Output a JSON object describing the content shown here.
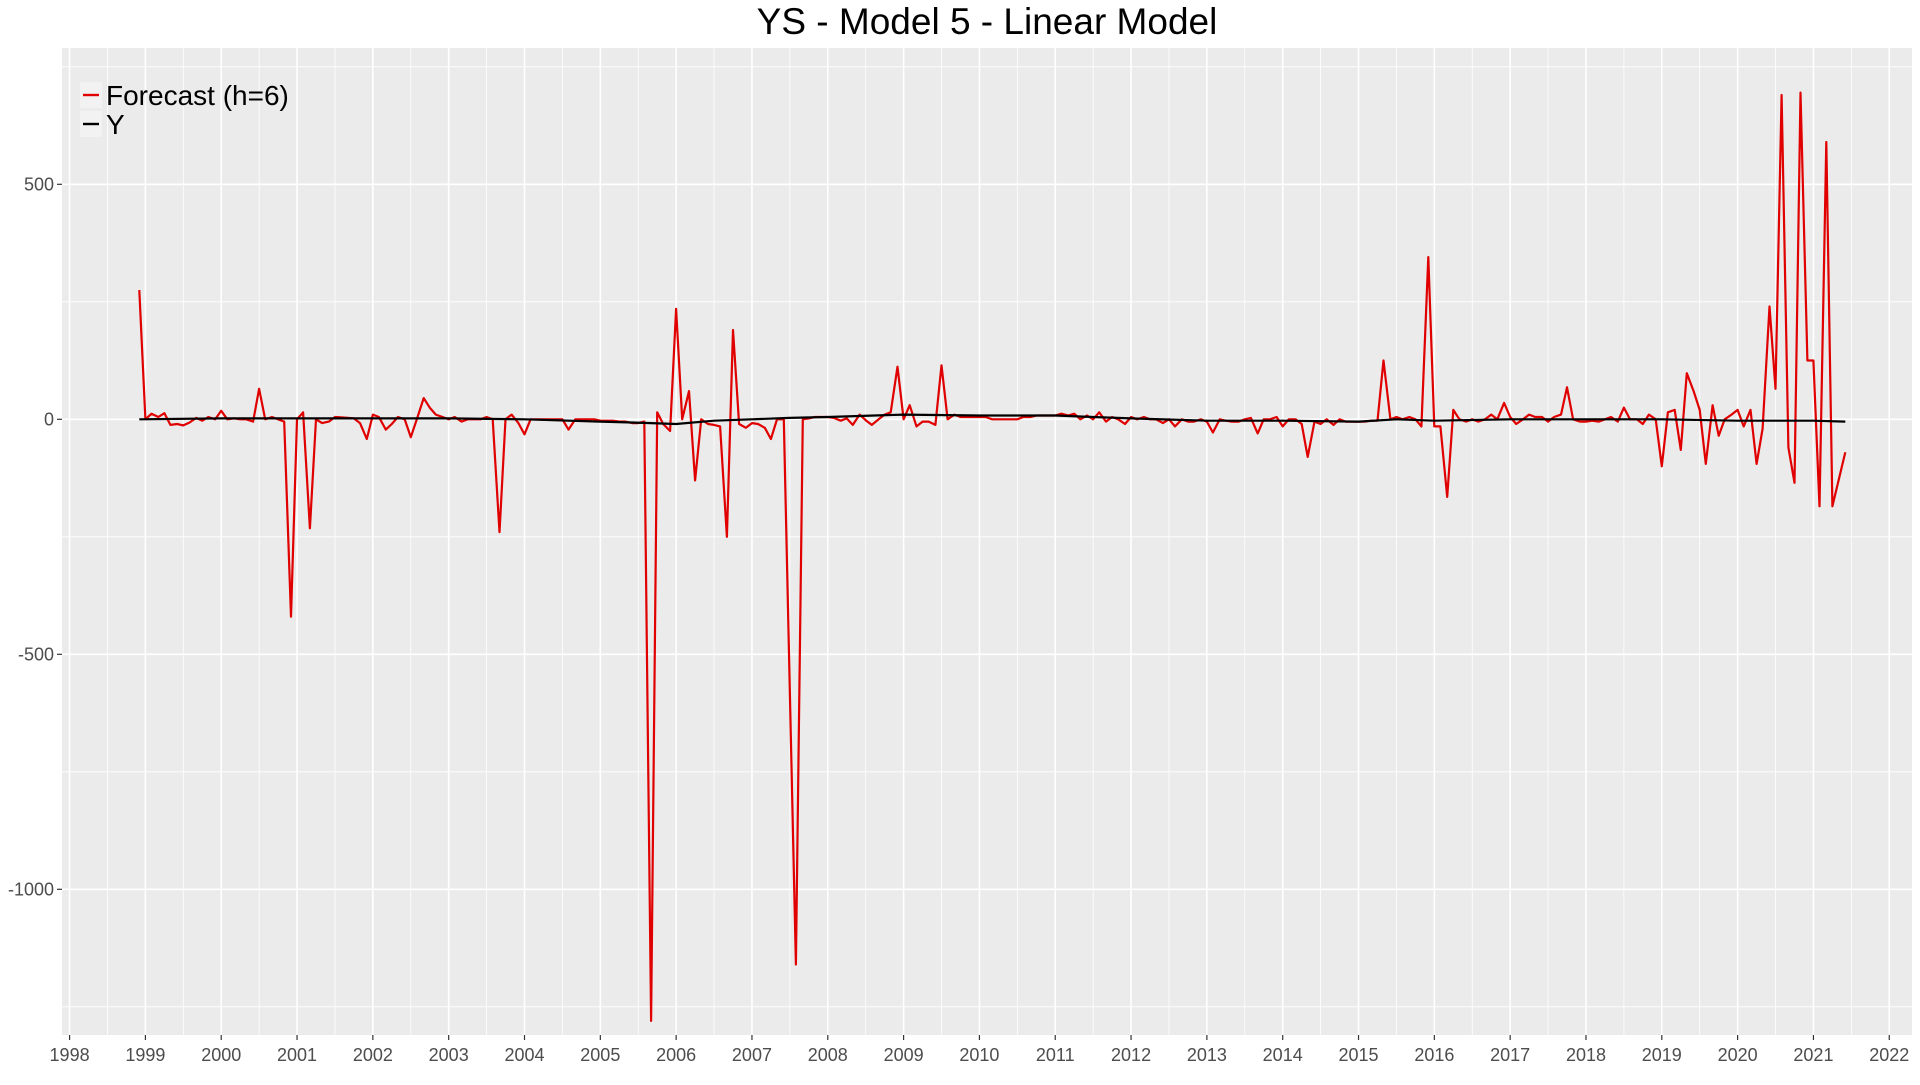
{
  "chart_data": {
    "type": "line",
    "title": "YS - Model 5 - Linear Model",
    "xlabel": "",
    "ylabel": "",
    "xlim": [
      1997.9,
      2022.3
    ],
    "ylim": [
      -1310,
      790
    ],
    "x_ticks": [
      1998,
      1999,
      2000,
      2001,
      2002,
      2003,
      2004,
      2005,
      2006,
      2007,
      2008,
      2009,
      2010,
      2011,
      2012,
      2013,
      2014,
      2015,
      2016,
      2017,
      2018,
      2019,
      2020,
      2021,
      2022
    ],
    "x_tick_labels": [
      "1998",
      "1999",
      "2000",
      "2001",
      "2002",
      "2003",
      "2004",
      "2005",
      "2006",
      "2007",
      "2008",
      "2009",
      "2010",
      "2011",
      "2012",
      "2013",
      "2014",
      "2015",
      "2016",
      "2017",
      "2018",
      "2019",
      "2020",
      "2021",
      "2022"
    ],
    "y_ticks": [
      -1000,
      -500,
      0,
      500
    ],
    "y_tick_labels": [
      "-1000",
      "-500",
      "0",
      "500"
    ],
    "grid": true,
    "legend": {
      "position": "top-left",
      "entries": [
        {
          "label": "Forecast (h=6)",
          "color": "#E00000"
        },
        {
          "label": "Y",
          "color": "#000000"
        }
      ]
    },
    "colors": {
      "forecast": "#E00000",
      "y": "#000000",
      "panel": "#EBEBEB",
      "grid": "#FFFFFF"
    },
    "series": [
      {
        "name": "Forecast (h=6)",
        "color": "#E00000",
        "points": [
          [
            1998.92,
            275
          ],
          [
            1999.0,
            0
          ],
          [
            1999.08,
            12
          ],
          [
            1999.17,
            5
          ],
          [
            1999.25,
            13
          ],
          [
            1999.33,
            -12
          ],
          [
            1999.42,
            -10
          ],
          [
            1999.5,
            -13
          ],
          [
            1999.58,
            -7
          ],
          [
            1999.67,
            3
          ],
          [
            1999.75,
            -3
          ],
          [
            1999.83,
            5
          ],
          [
            1999.92,
            0
          ],
          [
            2000.0,
            18
          ],
          [
            2000.08,
            0
          ],
          [
            2000.17,
            2
          ],
          [
            2000.25,
            0
          ],
          [
            2000.33,
            0
          ],
          [
            2000.42,
            -5
          ],
          [
            2000.5,
            65
          ],
          [
            2000.58,
            0
          ],
          [
            2000.67,
            5
          ],
          [
            2000.75,
            0
          ],
          [
            2000.83,
            -5
          ],
          [
            2000.92,
            -420
          ],
          [
            2001.0,
            0
          ],
          [
            2001.08,
            15
          ],
          [
            2001.17,
            -232
          ],
          [
            2001.25,
            0
          ],
          [
            2001.33,
            -8
          ],
          [
            2001.42,
            -5
          ],
          [
            2001.5,
            5
          ],
          [
            2001.58,
            4
          ],
          [
            2001.67,
            3
          ],
          [
            2001.75,
            2
          ],
          [
            2001.83,
            -8
          ],
          [
            2001.92,
            -42
          ],
          [
            2002.0,
            10
          ],
          [
            2002.08,
            5
          ],
          [
            2002.17,
            -22
          ],
          [
            2002.25,
            -10
          ],
          [
            2002.33,
            5
          ],
          [
            2002.42,
            0
          ],
          [
            2002.5,
            -38
          ],
          [
            2002.58,
            0
          ],
          [
            2002.67,
            45
          ],
          [
            2002.75,
            25
          ],
          [
            2002.83,
            10
          ],
          [
            2002.92,
            5
          ],
          [
            2003.0,
            0
          ],
          [
            2003.08,
            5
          ],
          [
            2003.17,
            -5
          ],
          [
            2003.25,
            0
          ],
          [
            2003.33,
            0
          ],
          [
            2003.42,
            0
          ],
          [
            2003.5,
            5
          ],
          [
            2003.58,
            0
          ],
          [
            2003.67,
            -240
          ],
          [
            2003.75,
            0
          ],
          [
            2003.83,
            10
          ],
          [
            2003.92,
            -8
          ],
          [
            2004.0,
            -32
          ],
          [
            2004.08,
            0
          ],
          [
            2004.17,
            0
          ],
          [
            2004.25,
            0
          ],
          [
            2004.33,
            0
          ],
          [
            2004.42,
            0
          ],
          [
            2004.5,
            0
          ],
          [
            2004.58,
            -22
          ],
          [
            2004.67,
            0
          ],
          [
            2004.75,
            0
          ],
          [
            2004.83,
            0
          ],
          [
            2004.92,
            0
          ],
          [
            2005.0,
            -3
          ],
          [
            2005.08,
            -3
          ],
          [
            2005.17,
            -3
          ],
          [
            2005.25,
            -5
          ],
          [
            2005.33,
            -5
          ],
          [
            2005.42,
            -8
          ],
          [
            2005.5,
            -8
          ],
          [
            2005.58,
            -5
          ],
          [
            2005.67,
            -1280
          ],
          [
            2005.75,
            15
          ],
          [
            2005.83,
            -10
          ],
          [
            2005.92,
            -25
          ],
          [
            2006.0,
            235
          ],
          [
            2006.08,
            0
          ],
          [
            2006.17,
            60
          ],
          [
            2006.25,
            -130
          ],
          [
            2006.33,
            0
          ],
          [
            2006.42,
            -10
          ],
          [
            2006.5,
            -12
          ],
          [
            2006.58,
            -15
          ],
          [
            2006.67,
            -250
          ],
          [
            2006.75,
            190
          ],
          [
            2006.83,
            -10
          ],
          [
            2006.92,
            -18
          ],
          [
            2007.0,
            -8
          ],
          [
            2007.08,
            -10
          ],
          [
            2007.17,
            -18
          ],
          [
            2007.25,
            -42
          ],
          [
            2007.33,
            0
          ],
          [
            2007.42,
            0
          ],
          [
            2007.58,
            -1160
          ],
          [
            2007.67,
            0
          ],
          [
            2007.75,
            2
          ],
          [
            2007.83,
            5
          ],
          [
            2007.92,
            5
          ],
          [
            2008.0,
            5
          ],
          [
            2008.08,
            3
          ],
          [
            2008.17,
            -3
          ],
          [
            2008.25,
            2
          ],
          [
            2008.33,
            -12
          ],
          [
            2008.42,
            10
          ],
          [
            2008.5,
            -2
          ],
          [
            2008.58,
            -12
          ],
          [
            2008.67,
            0
          ],
          [
            2008.75,
            10
          ],
          [
            2008.83,
            15
          ],
          [
            2008.92,
            112
          ],
          [
            2009.0,
            0
          ],
          [
            2009.08,
            30
          ],
          [
            2009.17,
            -15
          ],
          [
            2009.25,
            -5
          ],
          [
            2009.33,
            -5
          ],
          [
            2009.42,
            -12
          ],
          [
            2009.5,
            115
          ],
          [
            2009.58,
            0
          ],
          [
            2009.67,
            10
          ],
          [
            2009.75,
            5
          ],
          [
            2009.83,
            5
          ],
          [
            2009.92,
            5
          ],
          [
            2010.0,
            5
          ],
          [
            2010.08,
            5
          ],
          [
            2010.17,
            0
          ],
          [
            2010.25,
            0
          ],
          [
            2010.33,
            0
          ],
          [
            2010.42,
            0
          ],
          [
            2010.5,
            0
          ],
          [
            2010.58,
            5
          ],
          [
            2010.67,
            5
          ],
          [
            2010.75,
            8
          ],
          [
            2010.83,
            8
          ],
          [
            2010.92,
            8
          ],
          [
            2011.0,
            8
          ],
          [
            2011.08,
            12
          ],
          [
            2011.17,
            8
          ],
          [
            2011.25,
            12
          ],
          [
            2011.33,
            0
          ],
          [
            2011.42,
            8
          ],
          [
            2011.5,
            0
          ],
          [
            2011.58,
            15
          ],
          [
            2011.67,
            -5
          ],
          [
            2011.75,
            5
          ],
          [
            2011.83,
            0
          ],
          [
            2011.92,
            -10
          ],
          [
            2012.0,
            5
          ],
          [
            2012.08,
            0
          ],
          [
            2012.17,
            5
          ],
          [
            2012.25,
            0
          ],
          [
            2012.33,
            0
          ],
          [
            2012.42,
            -8
          ],
          [
            2012.5,
            0
          ],
          [
            2012.58,
            -15
          ],
          [
            2012.67,
            0
          ],
          [
            2012.75,
            -5
          ],
          [
            2012.83,
            -5
          ],
          [
            2012.92,
            0
          ],
          [
            2013.0,
            -5
          ],
          [
            2013.08,
            -28
          ],
          [
            2013.17,
            0
          ],
          [
            2013.25,
            -3
          ],
          [
            2013.33,
            -5
          ],
          [
            2013.42,
            -5
          ],
          [
            2013.5,
            0
          ],
          [
            2013.58,
            3
          ],
          [
            2013.67,
            -30
          ],
          [
            2013.75,
            0
          ],
          [
            2013.83,
            0
          ],
          [
            2013.92,
            5
          ],
          [
            2014.0,
            -15
          ],
          [
            2014.08,
            0
          ],
          [
            2014.17,
            0
          ],
          [
            2014.25,
            -10
          ],
          [
            2014.33,
            -80
          ],
          [
            2014.42,
            -5
          ],
          [
            2014.5,
            -10
          ],
          [
            2014.58,
            0
          ],
          [
            2014.67,
            -12
          ],
          [
            2014.75,
            0
          ],
          [
            2014.83,
            -5
          ],
          [
            2014.92,
            -5
          ],
          [
            2015.0,
            -5
          ],
          [
            2015.08,
            -5
          ],
          [
            2015.17,
            -3
          ],
          [
            2015.25,
            -3
          ],
          [
            2015.33,
            125
          ],
          [
            2015.42,
            0
          ],
          [
            2015.5,
            5
          ],
          [
            2015.58,
            0
          ],
          [
            2015.67,
            5
          ],
          [
            2015.75,
            0
          ],
          [
            2015.83,
            -15
          ],
          [
            2015.92,
            345
          ],
          [
            2016.0,
            -15
          ],
          [
            2016.08,
            -15
          ],
          [
            2016.17,
            -165
          ],
          [
            2016.25,
            20
          ],
          [
            2016.33,
            0
          ],
          [
            2016.42,
            -5
          ],
          [
            2016.5,
            0
          ],
          [
            2016.58,
            -5
          ],
          [
            2016.67,
            0
          ],
          [
            2016.75,
            10
          ],
          [
            2016.83,
            0
          ],
          [
            2016.92,
            35
          ],
          [
            2017.0,
            5
          ],
          [
            2017.08,
            -10
          ],
          [
            2017.17,
            0
          ],
          [
            2017.25,
            10
          ],
          [
            2017.33,
            5
          ],
          [
            2017.42,
            5
          ],
          [
            2017.5,
            -5
          ],
          [
            2017.58,
            5
          ],
          [
            2017.67,
            10
          ],
          [
            2017.75,
            68
          ],
          [
            2017.83,
            0
          ],
          [
            2017.92,
            -5
          ],
          [
            2018.0,
            -5
          ],
          [
            2018.08,
            -3
          ],
          [
            2018.17,
            -5
          ],
          [
            2018.25,
            0
          ],
          [
            2018.33,
            5
          ],
          [
            2018.42,
            -5
          ],
          [
            2018.5,
            25
          ],
          [
            2018.58,
            0
          ],
          [
            2018.67,
            0
          ],
          [
            2018.75,
            -10
          ],
          [
            2018.83,
            10
          ],
          [
            2018.92,
            0
          ],
          [
            2019.0,
            -100
          ],
          [
            2019.08,
            15
          ],
          [
            2019.17,
            20
          ],
          [
            2019.25,
            -65
          ],
          [
            2019.33,
            98
          ],
          [
            2019.42,
            60
          ],
          [
            2019.5,
            20
          ],
          [
            2019.58,
            -95
          ],
          [
            2019.67,
            30
          ],
          [
            2019.75,
            -35
          ],
          [
            2019.83,
            0
          ],
          [
            2019.92,
            10
          ],
          [
            2020.0,
            20
          ],
          [
            2020.08,
            -15
          ],
          [
            2020.17,
            20
          ],
          [
            2020.25,
            -95
          ],
          [
            2020.33,
            -20
          ],
          [
            2020.42,
            240
          ],
          [
            2020.5,
            65
          ],
          [
            2020.58,
            690
          ],
          [
            2020.67,
            -60
          ],
          [
            2020.75,
            -135
          ],
          [
            2020.83,
            695
          ],
          [
            2020.92,
            125
          ],
          [
            2021.0,
            125
          ],
          [
            2021.08,
            -185
          ],
          [
            2021.17,
            590
          ],
          [
            2021.25,
            -185
          ],
          [
            2021.42,
            -70
          ]
        ]
      },
      {
        "name": "Y",
        "color": "#000000",
        "points": [
          [
            1998.92,
            0
          ],
          [
            2000.0,
            2
          ],
          [
            2001.0,
            2
          ],
          [
            2002.0,
            2
          ],
          [
            2003.0,
            2
          ],
          [
            2004.0,
            0
          ],
          [
            2005.0,
            -5
          ],
          [
            2005.67,
            -8
          ],
          [
            2006.0,
            -10
          ],
          [
            2006.5,
            -3
          ],
          [
            2007.0,
            0
          ],
          [
            2007.5,
            3
          ],
          [
            2008.0,
            5
          ],
          [
            2009.0,
            10
          ],
          [
            2010.0,
            8
          ],
          [
            2011.0,
            8
          ],
          [
            2011.5,
            5
          ],
          [
            2012.0,
            2
          ],
          [
            2013.0,
            -3
          ],
          [
            2014.0,
            -3
          ],
          [
            2015.0,
            -5
          ],
          [
            2015.5,
            0
          ],
          [
            2016.0,
            -3
          ],
          [
            2017.0,
            0
          ],
          [
            2018.0,
            0
          ],
          [
            2019.0,
            0
          ],
          [
            2020.0,
            -3
          ],
          [
            2021.0,
            -3
          ],
          [
            2021.42,
            -5
          ]
        ]
      }
    ]
  }
}
